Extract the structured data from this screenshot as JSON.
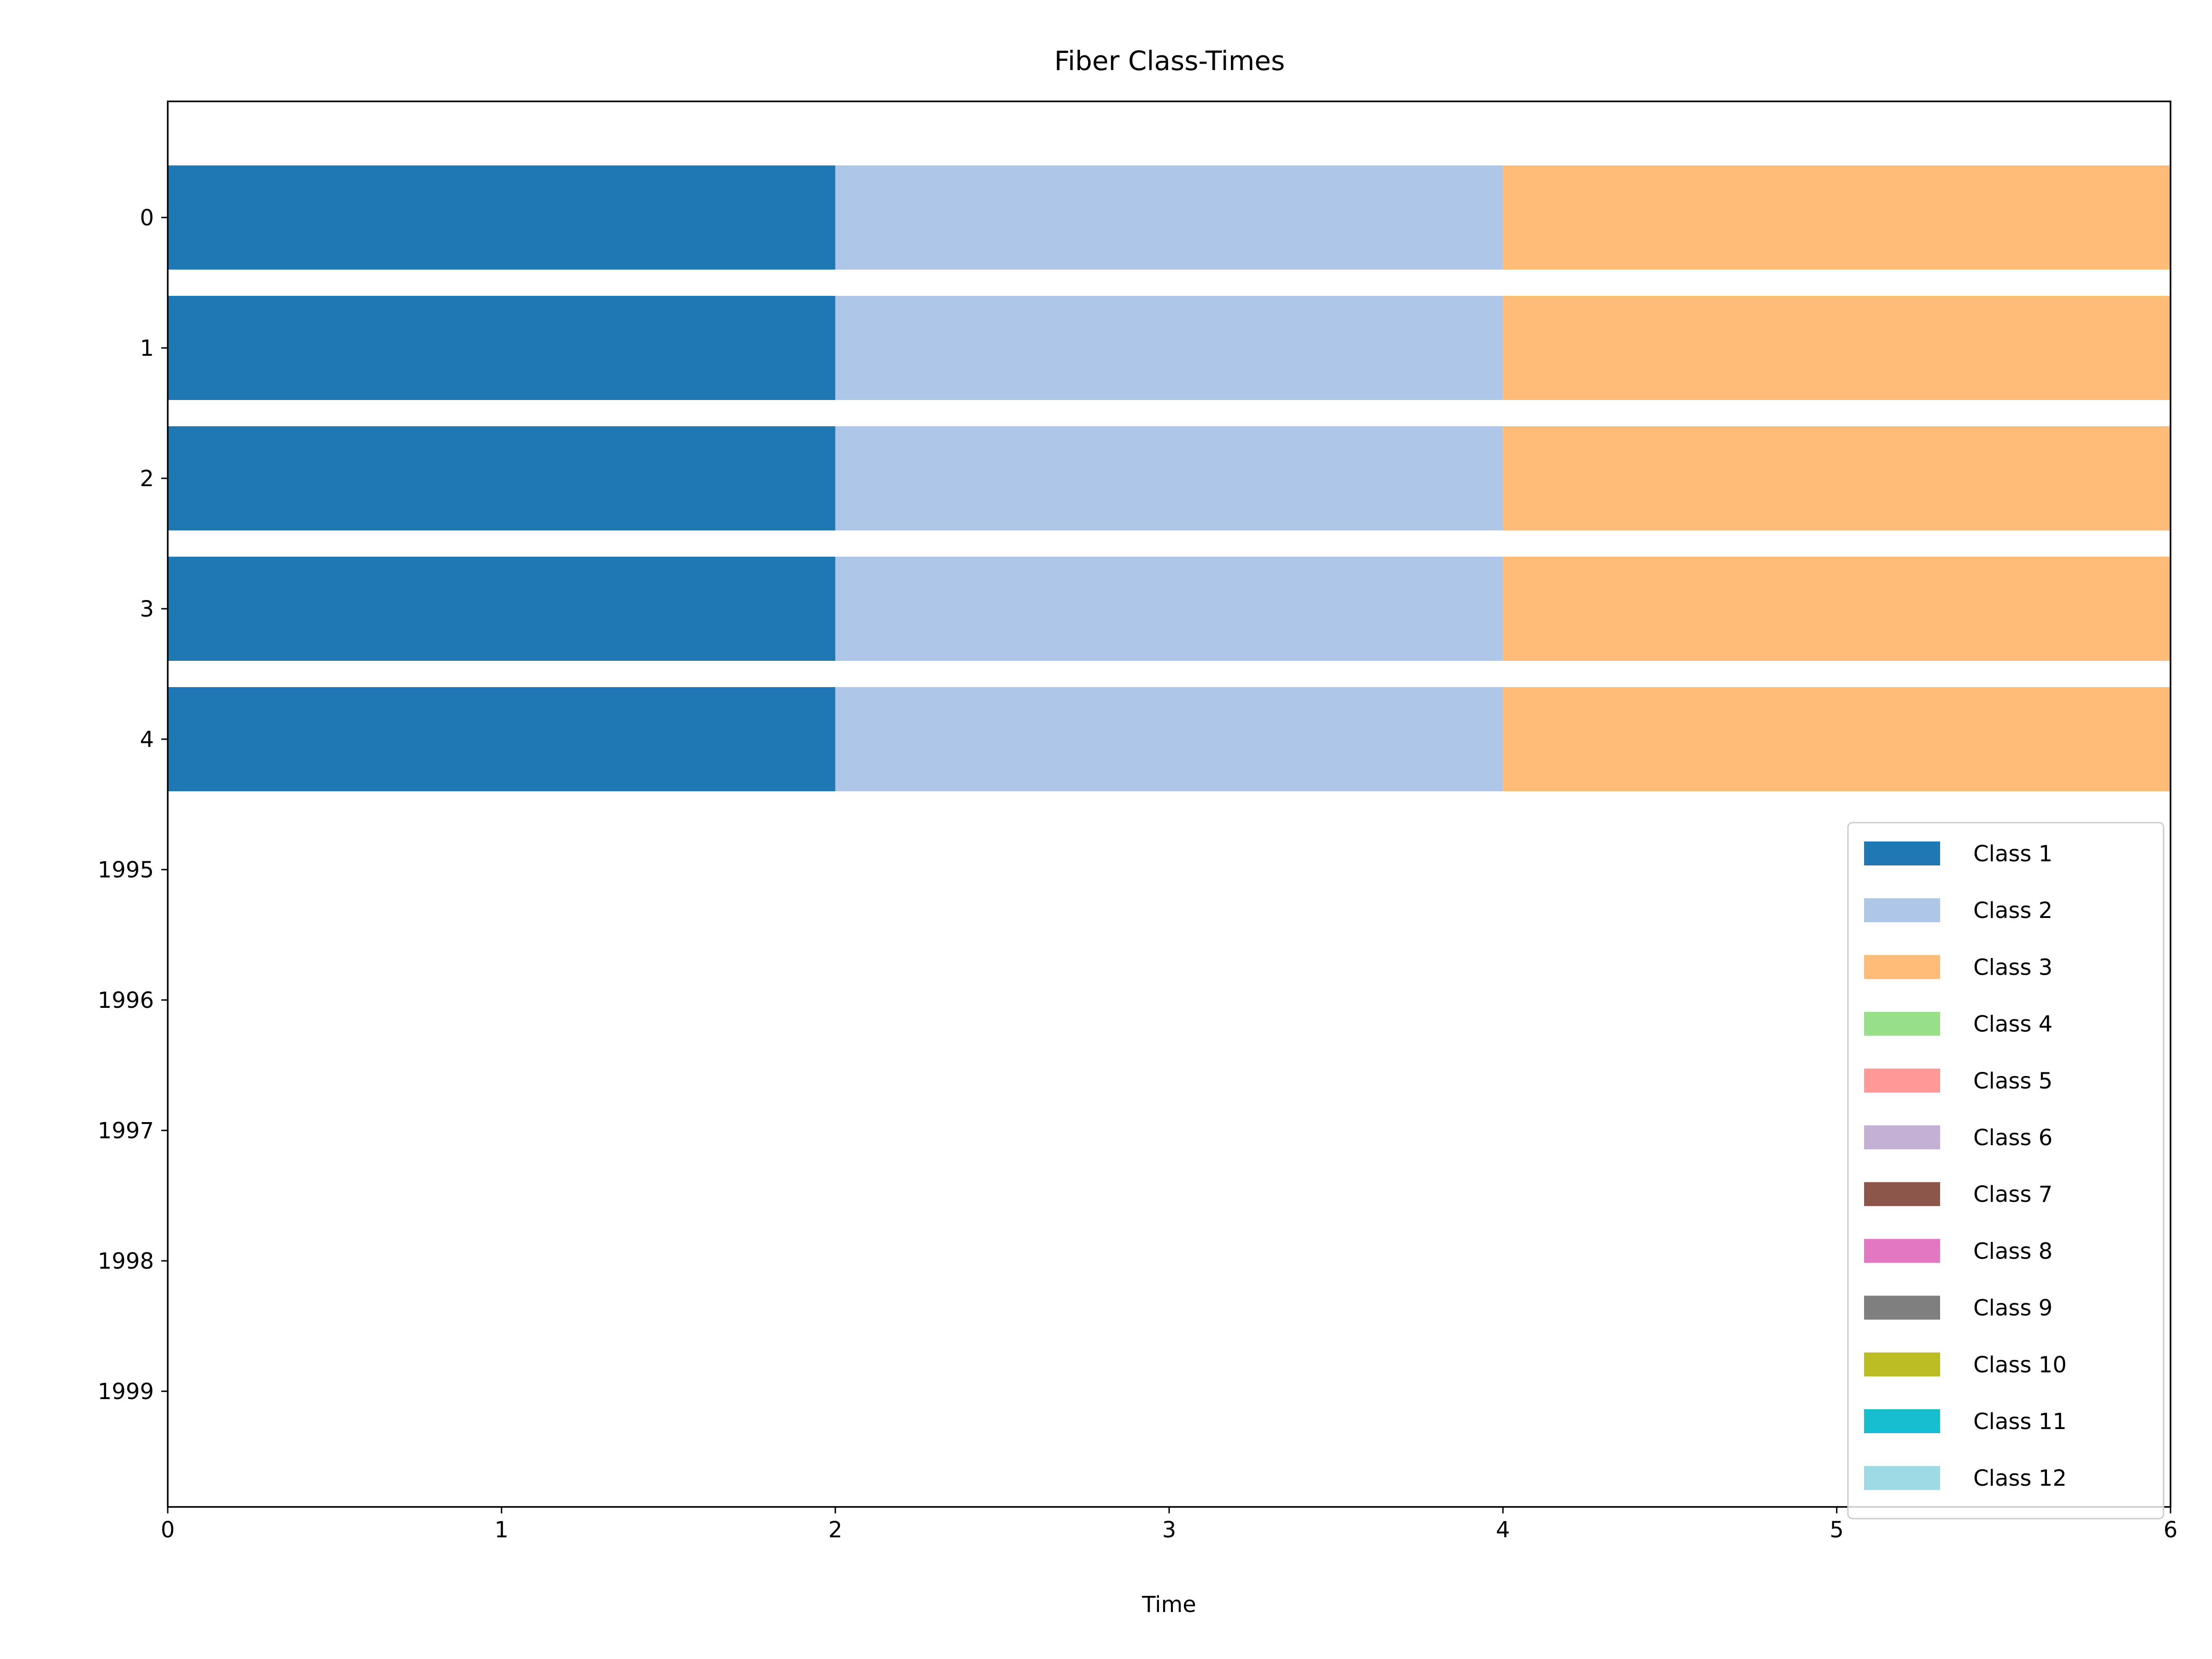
{
  "chart_data": {
    "type": "bar",
    "orientation": "horizontal-stacked",
    "title": "Fiber Class-Times",
    "xlabel": "Time",
    "ylabel": "",
    "xlim": [
      0,
      6
    ],
    "x_ticks": [
      "0",
      "1",
      "2",
      "3",
      "4",
      "5",
      "6"
    ],
    "y_ticks": [
      "0",
      "1",
      "2",
      "3",
      "4",
      "1995",
      "1996",
      "1997",
      "1998",
      "1999"
    ],
    "categories": [
      "0",
      "1",
      "2",
      "3",
      "4"
    ],
    "series": [
      {
        "name": "Class 1",
        "color": "#1f77b4",
        "values": [
          [
            0,
            2
          ],
          [
            0,
            2
          ],
          [
            0,
            2
          ],
          [
            0,
            2
          ],
          [
            0,
            2
          ]
        ]
      },
      {
        "name": "Class 2",
        "color": "#aec7e8",
        "values": [
          [
            2,
            4
          ],
          [
            2,
            4
          ],
          [
            2,
            4
          ],
          [
            2,
            4
          ],
          [
            2,
            4
          ]
        ]
      },
      {
        "name": "Class 3",
        "color": "#ffbb78",
        "values": [
          [
            4,
            6
          ],
          [
            4,
            6
          ],
          [
            4,
            6
          ],
          [
            4,
            6
          ],
          [
            4,
            6
          ]
        ]
      }
    ],
    "legend": {
      "placement": "lower-right",
      "items": [
        {
          "label": "Class 1",
          "color": "#1f77b4"
        },
        {
          "label": "Class 2",
          "color": "#aec7e8"
        },
        {
          "label": "Class 3",
          "color": "#ffbb78"
        },
        {
          "label": "Class 4",
          "color": "#98df8a"
        },
        {
          "label": "Class 5",
          "color": "#ff9896"
        },
        {
          "label": "Class 6",
          "color": "#c5b0d5"
        },
        {
          "label": "Class 7",
          "color": "#8c564b"
        },
        {
          "label": "Class 8",
          "color": "#e377c2"
        },
        {
          "label": "Class 9",
          "color": "#7f7f7f"
        },
        {
          "label": "Class 10",
          "color": "#bcbd22"
        },
        {
          "label": "Class 11",
          "color": "#17becf"
        },
        {
          "label": "Class 12",
          "color": "#9edae5"
        }
      ]
    },
    "grid": false
  }
}
